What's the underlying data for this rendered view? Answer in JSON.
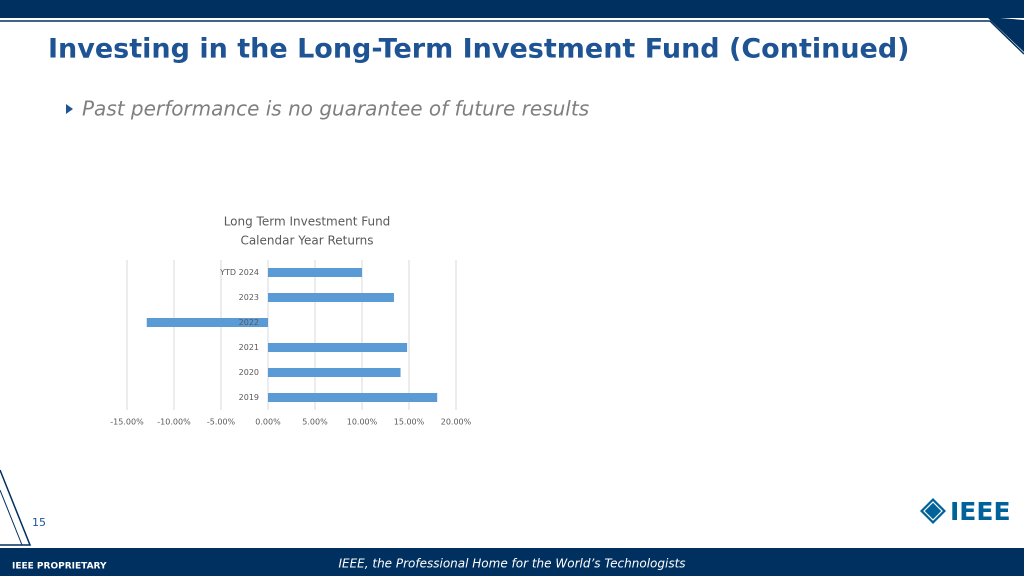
{
  "slide": {
    "title": "Investing in the Long-Term Investment Fund (Continued)",
    "bullet": "Past performance is no guarantee of future results",
    "page_number": "15",
    "logo": "IEEE",
    "footer_left": "IEEE PROPRIETARY",
    "footer_center": "IEEE, the Professional Home for the World’s Technologists"
  },
  "chart_data": {
    "type": "bar",
    "orientation": "horizontal",
    "title": [
      "Long Term Investment Fund",
      "Calendar Year Returns"
    ],
    "categories": [
      "YTD 2024",
      "2023",
      "2022",
      "2021",
      "2020",
      "2019"
    ],
    "values": [
      10.0,
      13.4,
      -12.9,
      14.8,
      14.1,
      18.0
    ],
    "color": "#5b9bd5",
    "xlim": [
      -15,
      20
    ],
    "xticks": [
      {
        "value": -15,
        "label": "-15.00%"
      },
      {
        "value": -10,
        "label": "-10.00%"
      },
      {
        "value": -5,
        "label": "-5.00%"
      },
      {
        "value": 0,
        "label": "0.00%"
      },
      {
        "value": 5,
        "label": "5.00%"
      },
      {
        "value": 10,
        "label": "10.00%"
      },
      {
        "value": 15,
        "label": "15.00%"
      },
      {
        "value": 20,
        "label": "20.00%"
      }
    ],
    "grid": true
  }
}
